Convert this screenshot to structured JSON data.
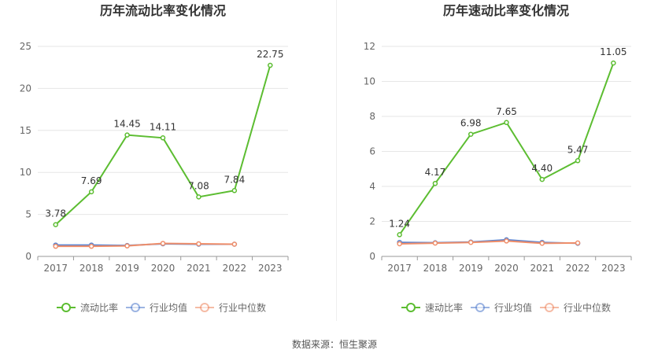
{
  "footer": {
    "source": "数据来源：恒生聚源"
  },
  "colors": {
    "main": "#5cbd31",
    "avg": "#5b83cf",
    "median": "#ef8e6a",
    "grid": "#e6e6e6",
    "axis": "#999999"
  },
  "chart_data": [
    {
      "type": "line",
      "title": "历年流动比率变化情况",
      "categories": [
        "2017",
        "2018",
        "2019",
        "2020",
        "2021",
        "2022",
        "2023"
      ],
      "ylim": [
        0,
        25
      ],
      "yticks": [
        0,
        5,
        10,
        15,
        20,
        25
      ],
      "grid": true,
      "legend_position": "bottom",
      "series": [
        {
          "name": "流动比率",
          "color": "#5cbd31",
          "values": [
            3.78,
            7.69,
            14.45,
            14.11,
            7.08,
            7.84,
            22.75
          ],
          "labels": [
            "3.78",
            "7.69",
            "14.45",
            "14.11",
            "7.08",
            "7.84",
            "22.75"
          ]
        },
        {
          "name": "行业均值",
          "color": "#5b83cf",
          "values": [
            1.35,
            1.35,
            1.3,
            1.5,
            1.45,
            1.45,
            null
          ]
        },
        {
          "name": "行业中位数",
          "color": "#ef8e6a",
          "values": [
            1.2,
            1.2,
            1.25,
            1.55,
            1.5,
            1.45,
            null
          ]
        }
      ]
    },
    {
      "type": "line",
      "title": "历年速动比率变化情况",
      "categories": [
        "2017",
        "2018",
        "2019",
        "2020",
        "2021",
        "2022",
        "2023"
      ],
      "ylim": [
        0,
        12
      ],
      "yticks": [
        0,
        2,
        4,
        6,
        8,
        10,
        12
      ],
      "grid": true,
      "legend_position": "bottom",
      "series": [
        {
          "name": "速动比率",
          "color": "#5cbd31",
          "values": [
            1.24,
            4.17,
            6.98,
            7.65,
            4.4,
            5.47,
            11.05
          ],
          "labels": [
            "1.24",
            "4.17",
            "6.98",
            "7.65",
            "4.40",
            "5.47",
            "11.05"
          ]
        },
        {
          "name": "行业均值",
          "color": "#5b83cf",
          "values": [
            0.8,
            0.78,
            0.82,
            0.95,
            0.8,
            0.75,
            null
          ]
        },
        {
          "name": "行业中位数",
          "color": "#ef8e6a",
          "values": [
            0.72,
            0.76,
            0.8,
            0.88,
            0.75,
            0.77,
            null
          ]
        }
      ]
    }
  ]
}
